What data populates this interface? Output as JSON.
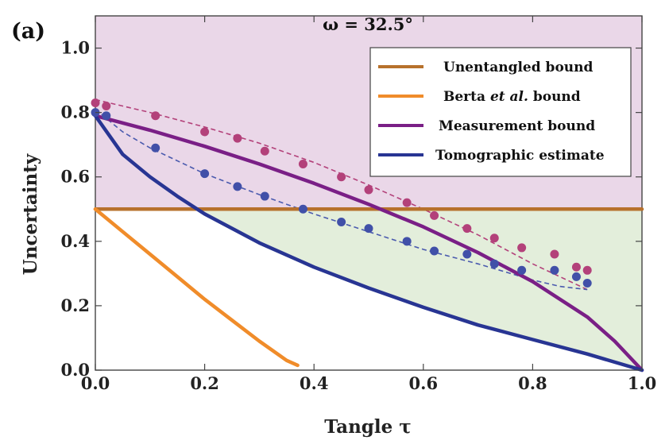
{
  "chart_data": {
    "type": "line",
    "panel_label": "(a)",
    "title": "ω = 32.5°",
    "xlabel": "Tangle τ",
    "ylabel": "Uncertainty",
    "xlim": [
      0.0,
      1.0
    ],
    "ylim": [
      0.0,
      1.1
    ],
    "xticks": [
      "0.0",
      "0.2",
      "0.4",
      "0.6",
      "0.8",
      "1.0"
    ],
    "yticks": [
      "0.0",
      "0.2",
      "0.4",
      "0.6",
      "0.8",
      "1.0"
    ],
    "legend_position": "top-right",
    "colors": {
      "region_top": "#ead7e8",
      "region_mid": "#e3eedb",
      "unentangled": "#b7712c",
      "berta": "#f08c2a",
      "measurement": "#7a1f86",
      "tomographic": "#283593",
      "points_measured": "#b3417a",
      "points_tomo": "#4150a8",
      "fit_dashed": "#b3417a",
      "fit_dashed_tomo": "#4a5aae"
    },
    "legend": [
      {
        "key": "unentangled",
        "label": "Unentangled bound",
        "color": "#b7712c"
      },
      {
        "key": "berta",
        "label_pre": "Berta ",
        "label_italic": "et al.",
        "label_post": " bound",
        "color": "#f08c2a"
      },
      {
        "key": "measurement",
        "label": "Measurement bound",
        "color": "#7a1f86"
      },
      {
        "key": "tomographic",
        "label": "Tomographic estimate",
        "color": "#283593"
      }
    ],
    "series": [
      {
        "name": "Unentangled bound",
        "x": [
          0.0,
          1.0
        ],
        "y": [
          0.5,
          0.5
        ]
      },
      {
        "name": "Berta et al. bound",
        "x": [
          0.0,
          0.05,
          0.1,
          0.15,
          0.2,
          0.25,
          0.3,
          0.35,
          0.37
        ],
        "y": [
          0.5,
          0.43,
          0.36,
          0.29,
          0.22,
          0.155,
          0.09,
          0.03,
          0.015
        ]
      },
      {
        "name": "Measurement bound",
        "x": [
          0.0,
          0.1,
          0.2,
          0.3,
          0.4,
          0.5,
          0.6,
          0.7,
          0.8,
          0.9,
          0.95,
          1.0
        ],
        "y": [
          0.79,
          0.745,
          0.695,
          0.64,
          0.58,
          0.515,
          0.445,
          0.365,
          0.275,
          0.165,
          0.09,
          0.0
        ]
      },
      {
        "name": "Tomographic estimate",
        "x": [
          0.0,
          0.05,
          0.1,
          0.15,
          0.2,
          0.3,
          0.4,
          0.5,
          0.6,
          0.7,
          0.8,
          0.9,
          0.95,
          1.0
        ],
        "y": [
          0.79,
          0.67,
          0.6,
          0.54,
          0.485,
          0.395,
          0.32,
          0.255,
          0.195,
          0.14,
          0.095,
          0.05,
          0.025,
          0.0
        ]
      }
    ],
    "measured_points": [
      {
        "x": 0.0,
        "y": 0.83
      },
      {
        "x": 0.02,
        "y": 0.82
      },
      {
        "x": 0.11,
        "y": 0.79
      },
      {
        "x": 0.2,
        "y": 0.74
      },
      {
        "x": 0.26,
        "y": 0.72
      },
      {
        "x": 0.31,
        "y": 0.68
      },
      {
        "x": 0.38,
        "y": 0.64
      },
      {
        "x": 0.45,
        "y": 0.6
      },
      {
        "x": 0.5,
        "y": 0.56
      },
      {
        "x": 0.57,
        "y": 0.52
      },
      {
        "x": 0.62,
        "y": 0.48
      },
      {
        "x": 0.68,
        "y": 0.44
      },
      {
        "x": 0.73,
        "y": 0.41
      },
      {
        "x": 0.78,
        "y": 0.38
      },
      {
        "x": 0.84,
        "y": 0.36
      },
      {
        "x": 0.88,
        "y": 0.32
      },
      {
        "x": 0.9,
        "y": 0.31
      }
    ],
    "tomographic_points": [
      {
        "x": 0.0,
        "y": 0.8
      },
      {
        "x": 0.02,
        "y": 0.79
      },
      {
        "x": 0.11,
        "y": 0.69
      },
      {
        "x": 0.2,
        "y": 0.61
      },
      {
        "x": 0.26,
        "y": 0.57
      },
      {
        "x": 0.31,
        "y": 0.54
      },
      {
        "x": 0.38,
        "y": 0.5
      },
      {
        "x": 0.45,
        "y": 0.46
      },
      {
        "x": 0.5,
        "y": 0.44
      },
      {
        "x": 0.57,
        "y": 0.4
      },
      {
        "x": 0.62,
        "y": 0.37
      },
      {
        "x": 0.68,
        "y": 0.36
      },
      {
        "x": 0.73,
        "y": 0.33
      },
      {
        "x": 0.78,
        "y": 0.31
      },
      {
        "x": 0.84,
        "y": 0.31
      },
      {
        "x": 0.88,
        "y": 0.29
      },
      {
        "x": 0.9,
        "y": 0.27
      }
    ],
    "fit_measured": {
      "x": [
        0.0,
        0.1,
        0.2,
        0.3,
        0.4,
        0.5,
        0.6,
        0.7,
        0.8,
        0.85,
        0.9
      ],
      "y": [
        0.84,
        0.8,
        0.755,
        0.705,
        0.645,
        0.575,
        0.5,
        0.42,
        0.33,
        0.29,
        0.25
      ]
    },
    "fit_tomographic": {
      "x": [
        0.0,
        0.05,
        0.1,
        0.2,
        0.3,
        0.4,
        0.5,
        0.6,
        0.7,
        0.8,
        0.85,
        0.9
      ],
      "y": [
        0.81,
        0.74,
        0.69,
        0.61,
        0.545,
        0.485,
        0.43,
        0.375,
        0.33,
        0.28,
        0.26,
        0.25
      ]
    }
  }
}
